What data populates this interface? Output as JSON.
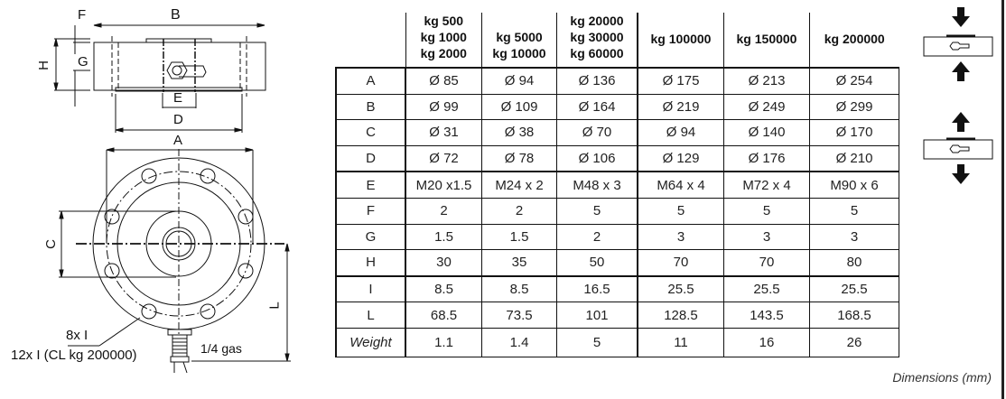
{
  "drawing": {
    "side_view_labels": {
      "B": "B",
      "F": "F",
      "H": "H",
      "G": "G",
      "E": "E",
      "D": "D"
    },
    "top_view_labels": {
      "A": "A",
      "C": "C",
      "L": "L"
    },
    "holes_note_1": "8x I",
    "holes_note_2": "12x I (CL kg 200000)",
    "connector_note": "1/4 gas"
  },
  "table": {
    "headers": [
      [
        "kg 500",
        "kg 1000",
        "kg 2000"
      ],
      [
        "kg 5000",
        "kg 10000"
      ],
      [
        "kg 20000",
        "kg 30000",
        "kg 60000"
      ],
      [
        "kg 100000"
      ],
      [
        "kg 150000"
      ],
      [
        "kg 200000"
      ]
    ],
    "rows": [
      {
        "label": "A",
        "values": [
          "Ø 85",
          "Ø 94",
          "Ø 136",
          "Ø 175",
          "Ø 213",
          "Ø 254"
        ]
      },
      {
        "label": "B",
        "values": [
          "Ø 99",
          "Ø 109",
          "Ø 164",
          "Ø 219",
          "Ø 249",
          "Ø 299"
        ]
      },
      {
        "label": "C",
        "values": [
          "Ø 31",
          "Ø 38",
          "Ø 70",
          "Ø 94",
          "Ø 140",
          "Ø 170"
        ]
      },
      {
        "label": "D",
        "values": [
          "Ø 72",
          "Ø 78",
          "Ø 106",
          "Ø 129",
          "Ø 176",
          "Ø 210"
        ]
      },
      {
        "label": "E",
        "values": [
          "M20 x1.5",
          "M24 x 2",
          "M48 x 3",
          "M64 x 4",
          "M72 x 4",
          "M90 x 6"
        ]
      },
      {
        "label": "F",
        "values": [
          "2",
          "2",
          "5",
          "5",
          "5",
          "5"
        ]
      },
      {
        "label": "G",
        "values": [
          "1.5",
          "1.5",
          "2",
          "3",
          "3",
          "3"
        ]
      },
      {
        "label": "H",
        "values": [
          "30",
          "35",
          "50",
          "70",
          "70",
          "80"
        ]
      },
      {
        "label": "I",
        "values": [
          "8.5",
          "8.5",
          "16.5",
          "25.5",
          "25.5",
          "25.5"
        ]
      },
      {
        "label": "L",
        "values": [
          "68.5",
          "73.5",
          "101",
          "128.5",
          "143.5",
          "168.5"
        ]
      },
      {
        "label": "Weight",
        "values": [
          "1.1",
          "1.4",
          "5",
          "11",
          "16",
          "26"
        ]
      }
    ]
  },
  "footer": {
    "units": "Dimensions (mm)"
  },
  "load_icons": [
    "compression-arrow-icon",
    "tension-arrow-icon"
  ]
}
